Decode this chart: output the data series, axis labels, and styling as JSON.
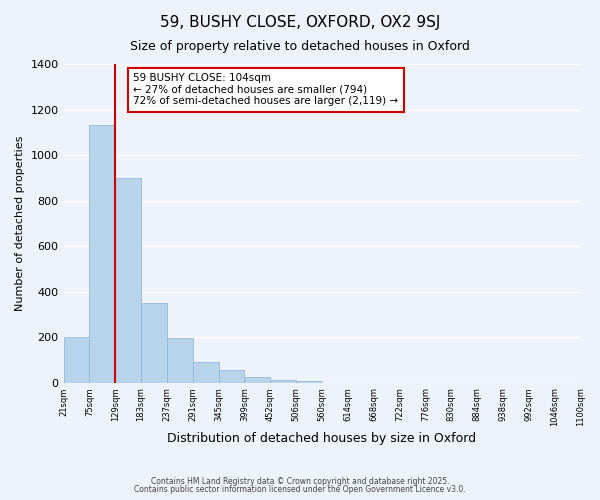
{
  "title": "59, BUSHY CLOSE, OXFORD, OX2 9SJ",
  "subtitle": "Size of property relative to detached houses in Oxford",
  "xlabel": "Distribution of detached houses by size in Oxford",
  "ylabel": "Number of detached properties",
  "bar_color": "#b8d4ea",
  "bar_edge_color": "#8ab4d4",
  "background_color": "#eef2fa",
  "grid_color": "#ffffff",
  "annotation_box_color": "#ffffff",
  "annotation_box_edge": "#cc0000",
  "vline_color": "#cc0000",
  "bin_edges": [
    "21sqm",
    "75sqm",
    "129sqm",
    "183sqm",
    "237sqm",
    "291sqm",
    "345sqm",
    "399sqm",
    "452sqm",
    "506sqm",
    "560sqm",
    "614sqm",
    "668sqm",
    "722sqm",
    "776sqm",
    "830sqm",
    "884sqm",
    "938sqm",
    "992sqm",
    "1046sqm",
    "1100sqm"
  ],
  "bar_heights": [
    200,
    1130,
    900,
    350,
    195,
    90,
    55,
    25,
    12,
    5,
    0,
    0,
    0,
    0,
    0,
    0,
    0,
    0,
    0,
    0
  ],
  "ylim": [
    0,
    1400
  ],
  "yticks": [
    0,
    200,
    400,
    600,
    800,
    1000,
    1200,
    1400
  ],
  "vline_pos": 2.0,
  "annotation_text": "59 BUSHY CLOSE: 104sqm\n← 27% of detached houses are smaller (794)\n72% of semi-detached houses are larger (2,119) →",
  "footnote1": "Contains HM Land Registry data © Crown copyright and database right 2025.",
  "footnote2": "Contains public sector information licensed under the Open Government Licence v3.0."
}
